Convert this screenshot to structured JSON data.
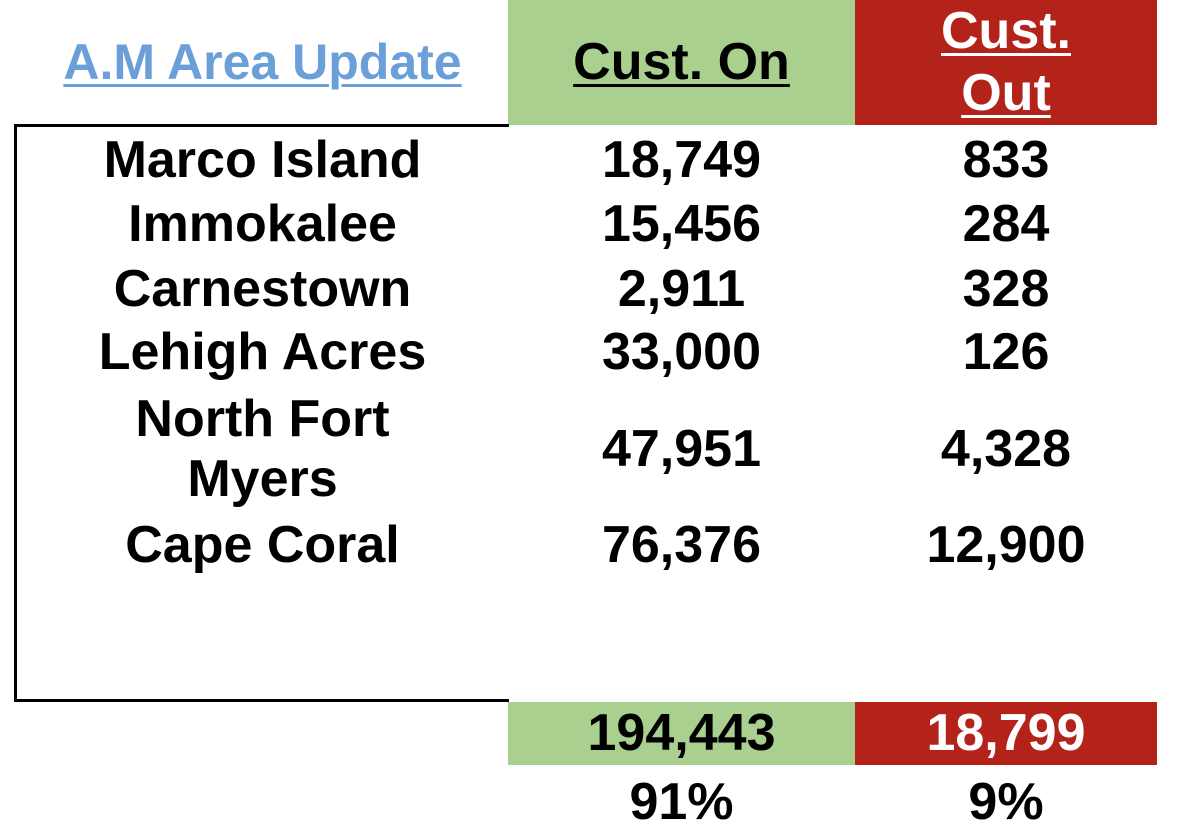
{
  "header": {
    "title": "A.M Area Update",
    "on": "Cust. On",
    "out": "Cust. Out"
  },
  "table": {
    "rows": [
      [
        "Marco Island",
        "18,749",
        "833"
      ],
      [
        "Immokalee",
        "15,456",
        "284"
      ],
      [
        "Carnestown",
        "2,911",
        "328"
      ],
      [
        "Lehigh Acres",
        "33,000",
        "126"
      ],
      [
        "North Fort Myers",
        "47,951",
        "4,328"
      ],
      [
        "Cape Coral",
        "76,376",
        "12,900"
      ]
    ]
  },
  "totals": {
    "on": "194,443",
    "out": "18,799"
  },
  "percent": {
    "on": "91%",
    "out": "9%"
  }
}
